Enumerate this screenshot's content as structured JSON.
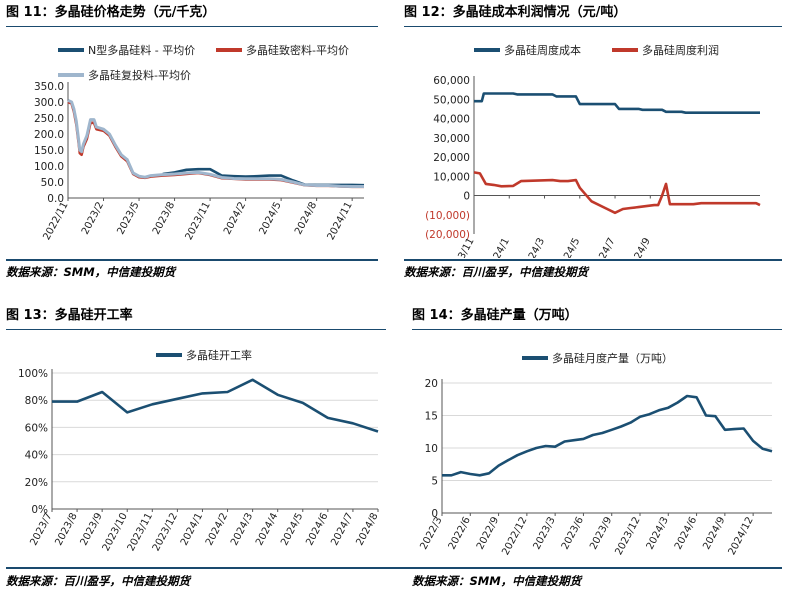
{
  "colors": {
    "navy": "#1b4f72",
    "red": "#c0392b",
    "lightblue": "#9fb6cd",
    "axis": "#444444",
    "rule": "#1a4a6e"
  },
  "panels": [
    {
      "title": "图 11：多晶硅价格走势（元/千克）",
      "source": "数据来源：SMM，中信建投期货",
      "chart_data": {
        "type": "line",
        "title": "多晶硅价格走势（元/千克）",
        "legend_position": "top",
        "ylim": [
          0,
          350
        ],
        "yticks": [
          "0.0",
          "50.0",
          "100.0",
          "150.0",
          "200.0",
          "250.0",
          "300.0",
          "350.0"
        ],
        "x_ticks": [
          "2022/11",
          "2023/2",
          "2023/5",
          "2023/8",
          "2023/11",
          "2024/2",
          "2024/5",
          "2024/8",
          "2024/11"
        ],
        "series": [
          {
            "name": "N型多晶硅料 - 平均价",
            "color": "#1b4f72",
            "points": [
              [
                0,
                null
              ],
              [
                7,
                null
              ],
              [
                8,
                75
              ],
              [
                9,
                80
              ],
              [
                10,
                88
              ],
              [
                11,
                90
              ],
              [
                12,
                90
              ],
              [
                13,
                70
              ],
              [
                14,
                68
              ],
              [
                15,
                67
              ],
              [
                16,
                68
              ],
              [
                17,
                70
              ],
              [
                18,
                70
              ],
              [
                19,
                55
              ],
              [
                20,
                42
              ],
              [
                21,
                41
              ],
              [
                22,
                41
              ],
              [
                23,
                41
              ],
              [
                24,
                41
              ],
              [
                25,
                40
              ]
            ]
          },
          {
            "name": "多晶硅致密料-平均价",
            "color": "#c0392b",
            "points": [
              [
                0,
                300
              ],
              [
                0.3,
                295
              ],
              [
                0.5,
                270
              ],
              [
                0.7,
                230
              ],
              [
                0.9,
                170
              ],
              [
                1.0,
                140
              ],
              [
                1.15,
                135
              ],
              [
                1.3,
                160
              ],
              [
                1.6,
                185
              ],
              [
                1.9,
                235
              ],
              [
                2.2,
                235
              ],
              [
                2.4,
                215
              ],
              [
                3.0,
                210
              ],
              [
                3.5,
                195
              ],
              [
                4.0,
                160
              ],
              [
                4.5,
                130
              ],
              [
                5.0,
                115
              ],
              [
                5.5,
                75
              ],
              [
                6.0,
                65
              ],
              [
                6.5,
                63
              ],
              [
                7,
                67
              ],
              [
                8,
                70
              ],
              [
                9,
                72
              ],
              [
                10,
                75
              ],
              [
                11,
                78
              ],
              [
                12,
                72
              ],
              [
                13,
                62
              ],
              [
                14,
                60
              ],
              [
                15,
                58
              ],
              [
                16,
                58
              ],
              [
                17,
                58
              ],
              [
                18,
                56
              ],
              [
                19,
                48
              ],
              [
                20,
                40
              ],
              [
                21,
                38
              ],
              [
                22,
                38
              ],
              [
                23,
                36
              ],
              [
                24,
                35
              ],
              [
                25,
                35
              ]
            ]
          },
          {
            "name": "多晶硅复投料-平均价",
            "color": "#9fb6cd",
            "points": [
              [
                0,
                305
              ],
              [
                0.3,
                300
              ],
              [
                0.5,
                278
              ],
              [
                0.7,
                240
              ],
              [
                0.9,
                180
              ],
              [
                1.0,
                150
              ],
              [
                1.15,
                145
              ],
              [
                1.3,
                168
              ],
              [
                1.6,
                195
              ],
              [
                1.9,
                245
              ],
              [
                2.2,
                245
              ],
              [
                2.4,
                222
              ],
              [
                3.0,
                215
              ],
              [
                3.5,
                200
              ],
              [
                4.0,
                165
              ],
              [
                4.5,
                135
              ],
              [
                5.0,
                120
              ],
              [
                5.5,
                78
              ],
              [
                6.0,
                68
              ],
              [
                6.5,
                65
              ],
              [
                7,
                70
              ],
              [
                8,
                73
              ],
              [
                9,
                75
              ],
              [
                10,
                78
              ],
              [
                11,
                80
              ],
              [
                12,
                74
              ],
              [
                13,
                64
              ],
              [
                14,
                61
              ],
              [
                15,
                60
              ],
              [
                16,
                60
              ],
              [
                17,
                60
              ],
              [
                18,
                58
              ],
              [
                19,
                50
              ],
              [
                20,
                41
              ],
              [
                21,
                39
              ],
              [
                22,
                39
              ],
              [
                23,
                37
              ],
              [
                24,
                36
              ],
              [
                25,
                36
              ]
            ]
          }
        ]
      }
    },
    {
      "title": "图 12：多晶硅成本利润情况（元/吨）",
      "source": "数据来源：百川盈孚，中信建投期货",
      "chart_data": {
        "type": "line",
        "title": "多晶硅成本利润情况（元/吨）",
        "legend_position": "top",
        "ylim": [
          -20000,
          60000
        ],
        "yticks": [
          "(20,000)",
          "(10,000)",
          "0",
          "10,000",
          "20,000",
          "30,000",
          "40,000",
          "50,000",
          "60,000"
        ],
        "x_ticks": [
          "2023/11",
          "2024/1",
          "2024/3",
          "2024/5",
          "2024/7",
          "2024/9"
        ],
        "series": [
          {
            "name": "多晶硅周度成本",
            "color": "#1b4f72",
            "points": [
              [
                0,
                49000
              ],
              [
                2,
                49000
              ],
              [
                2.5,
                53000
              ],
              [
                10,
                53000
              ],
              [
                11,
                52500
              ],
              [
                20,
                52500
              ],
              [
                21,
                51500
              ],
              [
                26,
                51500
              ],
              [
                27,
                47500
              ],
              [
                36,
                47500
              ],
              [
                37,
                45000
              ],
              [
                42,
                45000
              ],
              [
                43,
                44500
              ],
              [
                48,
                44500
              ],
              [
                49,
                43500
              ],
              [
                53,
                43500
              ],
              [
                54,
                43000
              ],
              [
                73,
                43000
              ]
            ]
          },
          {
            "name": "多晶硅周度利润",
            "color": "#c0392b",
            "points": [
              [
                0,
                12000
              ],
              [
                1.5,
                11500
              ],
              [
                3,
                6000
              ],
              [
                5,
                5500
              ],
              [
                7,
                4800
              ],
              [
                10,
                5000
              ],
              [
                12,
                7500
              ],
              [
                20,
                8000
              ],
              [
                22,
                7500
              ],
              [
                24,
                7500
              ],
              [
                26,
                8000
              ],
              [
                27,
                4000
              ],
              [
                30,
                -3000
              ],
              [
                34,
                -7000
              ],
              [
                36,
                -9000
              ],
              [
                38,
                -7000
              ],
              [
                40,
                -6500
              ],
              [
                42,
                -6000
              ],
              [
                46,
                -5000
              ],
              [
                47,
                -5000
              ],
              [
                48,
                0
              ],
              [
                49,
                6000
              ],
              [
                50,
                -4500
              ],
              [
                56,
                -4500
              ],
              [
                58,
                -4000
              ],
              [
                72,
                -4000
              ],
              [
                73,
                -5000
              ]
            ]
          }
        ]
      }
    },
    {
      "title": "图 13：多晶硅开工率",
      "source": "数据来源：百川盈孚，中信建投期货",
      "chart_data": {
        "type": "line",
        "title": "多晶硅开工率",
        "legend_position": "top",
        "ylim": [
          0,
          100
        ],
        "yticks": [
          "0%",
          "20%",
          "40%",
          "60%",
          "80%",
          "100%"
        ],
        "categories": [
          "2023/7",
          "2023/8",
          "2023/9",
          "2023/10",
          "2023/11",
          "2023/12",
          "2024/1",
          "2024/2",
          "2024/3",
          "2024/4",
          "2024/5",
          "2024/6",
          "2024/7",
          "2024/8"
        ],
        "series": [
          {
            "name": "多晶硅开工率",
            "color": "#1b4f72",
            "values": [
              79,
              79,
              86,
              71,
              77,
              81,
              85,
              86,
              95,
              84,
              78,
              67,
              63,
              57
            ]
          }
        ]
      }
    },
    {
      "title": "图 14：多晶硅产量（万吨）",
      "source": "数据来源：SMM，中信建投期货",
      "chart_data": {
        "type": "line",
        "title": "多晶硅产量（万吨）",
        "legend_position": "top",
        "ylim": [
          0,
          20
        ],
        "yticks": [
          "0",
          "5",
          "10",
          "15",
          "20"
        ],
        "x_ticks": [
          "2022/3",
          "2022/6",
          "2022/9",
          "2022/12",
          "2023/3",
          "2023/6",
          "2023/9",
          "2023/12",
          "2024/3",
          "2024/6",
          "2024/9",
          "2024/12"
        ],
        "series": [
          {
            "name": "多晶硅月度产量（万吨）",
            "color": "#1b4f72",
            "points": [
              [
                0,
                5.8
              ],
              [
                1,
                5.8
              ],
              [
                2,
                6.3
              ],
              [
                3,
                6.0
              ],
              [
                4,
                5.8
              ],
              [
                5,
                6.1
              ],
              [
                6,
                7.3
              ],
              [
                7,
                8.1
              ],
              [
                8,
                8.9
              ],
              [
                9,
                9.5
              ],
              [
                10,
                10.0
              ],
              [
                11,
                10.3
              ],
              [
                12,
                10.2
              ],
              [
                13,
                11.0
              ],
              [
                14,
                11.2
              ],
              [
                15,
                11.4
              ],
              [
                16,
                12.0
              ],
              [
                17,
                12.3
              ],
              [
                18,
                12.8
              ],
              [
                19,
                13.3
              ],
              [
                20,
                13.9
              ],
              [
                21,
                14.8
              ],
              [
                22,
                15.2
              ],
              [
                23,
                15.8
              ],
              [
                24,
                16.2
              ],
              [
                25,
                17.0
              ],
              [
                26,
                18.0
              ],
              [
                27,
                17.8
              ],
              [
                28,
                15.0
              ],
              [
                29,
                14.9
              ],
              [
                30,
                12.8
              ],
              [
                31,
                12.9
              ],
              [
                32,
                13.0
              ],
              [
                33,
                11.1
              ],
              [
                34,
                9.9
              ],
              [
                35,
                9.5
              ]
            ]
          }
        ]
      }
    }
  ]
}
